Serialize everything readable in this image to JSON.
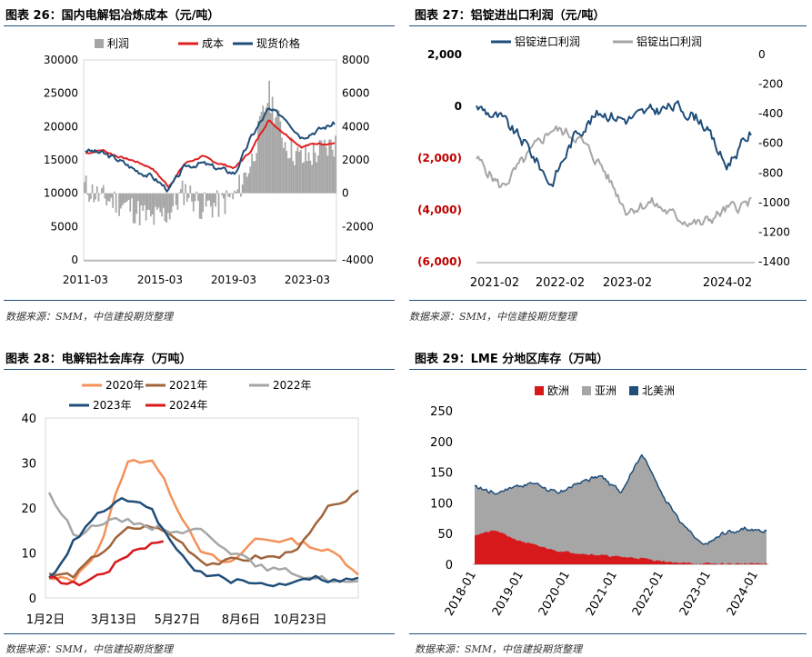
{
  "panels": [
    {
      "title": "图表 26：国内电解铝冶炼成本（元/吨）",
      "source": "数据来源：SMM，中信建投期货整理"
    },
    {
      "title": "图表 27：铝锭进出口利润（元/吨）",
      "source": "数据来源：SMM，中信建投期货整理"
    },
    {
      "title": "图表 28：电解铝社会库存（万吨）",
      "source": "数据来源：SMM，中信建投期货整理"
    },
    {
      "title": "图表 29：LME 分地区库存（万吨）",
      "source": "数据来源：SMM，中信建投期货整理"
    }
  ],
  "chart_data": [
    {
      "type": "line",
      "legend": [
        "利润",
        "成本",
        "现货价格"
      ],
      "colors": {
        "利润": "#a6a6a6",
        "成本": "#e02020",
        "现货价格": "#1f4e79"
      },
      "x_ticks": [
        "2011-03",
        "2015-03",
        "2019-03",
        "2023-03"
      ],
      "y_left": {
        "range": [
          0,
          30000
        ],
        "ticks": [
          "0",
          "5000",
          "10000",
          "15000",
          "20000",
          "25000",
          "30000"
        ]
      },
      "y_right": {
        "range": [
          -4000,
          8000
        ],
        "ticks": [
          "-4000",
          "-2000",
          "0",
          "2000",
          "4000",
          "6000",
          "8000"
        ]
      },
      "x": [
        "2011-03",
        "2012-03",
        "2013-03",
        "2014-03",
        "2015-03",
        "2016-03",
        "2017-03",
        "2018-03",
        "2019-03",
        "2020-03",
        "2021-03",
        "2021-10",
        "2022-03",
        "2023-03",
        "2024-03",
        "2024-06"
      ],
      "series": [
        {
          "name": "成本",
          "axis": "left",
          "values": [
            16000,
            16500,
            15500,
            14800,
            13800,
            11000,
            14500,
            15500,
            14500,
            13800,
            16500,
            21000,
            19000,
            17000,
            17500,
            17500
          ]
        },
        {
          "name": "现货价格",
          "axis": "left",
          "values": [
            16500,
            16000,
            15000,
            13500,
            12500,
            10500,
            14000,
            14500,
            13700,
            13000,
            18500,
            22500,
            21500,
            18500,
            19500,
            20500
          ]
        },
        {
          "name": "利润",
          "axis": "right",
          "values": [
            400,
            -300,
            -500,
            -1000,
            -1600,
            -1200,
            200,
            -800,
            -700,
            -200,
            2000,
            6000,
            3000,
            2000,
            2500,
            3000
          ]
        }
      ]
    },
    {
      "type": "line",
      "legend": [
        "铝锭进口利润",
        "铝锭出口利润"
      ],
      "colors": {
        "铝锭进口利润": "#1f4e79",
        "铝锭出口利润": "#a6a6a6"
      },
      "x_ticks": [
        "2021-02",
        "2022-02",
        "2023-02",
        "2024-02"
      ],
      "y_left": {
        "range": [
          -6000,
          2000
        ],
        "ticks": [
          "2,000",
          "0",
          "(2,000)",
          "(4,000)",
          "(6,000)"
        ]
      },
      "y_right": {
        "range": [
          -1400,
          0
        ],
        "ticks": [
          "0",
          "-200",
          "-400",
          "-600",
          "-800",
          "-1000",
          "-1200",
          "-1400"
        ]
      },
      "x": [
        "2021-02",
        "2021-06",
        "2021-10",
        "2022-02",
        "2022-06",
        "2022-10",
        "2023-02",
        "2023-06",
        "2023-10",
        "2024-02",
        "2024-05",
        "2024-06"
      ],
      "series": [
        {
          "name": "铝锭进口利润",
          "axis": "left",
          "values": [
            0,
            -500,
            -1500,
            -3000,
            -1000,
            -200,
            -500,
            -200,
            0,
            -500,
            -2300,
            -1000
          ]
        },
        {
          "name": "铝锭出口利润",
          "axis": "right",
          "values": [
            -700,
            -900,
            -700,
            -500,
            -550,
            -750,
            -1050,
            -1000,
            -1100,
            -1150,
            -1050,
            -1000
          ]
        }
      ]
    },
    {
      "type": "line",
      "legend": [
        "2020年",
        "2021年",
        "2022年",
        "2023年",
        "2024年"
      ],
      "colors": {
        "2020年": "#f4915a",
        "2021年": "#a0643a",
        "2022年": "#a6a6a6",
        "2023年": "#1f4e79",
        "2024年": "#d7191c"
      },
      "x_ticks": [
        "1月2日",
        "3月13日",
        "5月27日",
        "8月6日",
        "10月23日"
      ],
      "ylim": [
        0,
        40
      ],
      "y_ticks": [
        "0",
        "10",
        "20",
        "30",
        "40"
      ],
      "series": [
        {
          "name": "2020年",
          "values": [
            4,
            4,
            12,
            30,
            31,
            20,
            10,
            7,
            13,
            13,
            12,
            10,
            6
          ]
        },
        {
          "name": "2021年",
          "values": [
            5,
            5,
            10,
            15,
            16,
            13,
            8,
            8,
            9,
            9,
            13,
            21,
            23
          ]
        },
        {
          "name": "2022年",
          "values": [
            23,
            14,
            17,
            17,
            16,
            15,
            15,
            11,
            7,
            6,
            5,
            4,
            3
          ]
        },
        {
          "name": "2023年",
          "values": [
            4,
            13,
            19,
            22,
            19,
            10,
            5,
            4,
            3,
            3,
            5,
            4,
            4
          ]
        },
        {
          "name": "2024年",
          "values": [
            4,
            3,
            6,
            11,
            13
          ]
        }
      ]
    },
    {
      "type": "area",
      "stacked": true,
      "legend": [
        "欧洲",
        "亚洲",
        "北美洲"
      ],
      "colors": {
        "欧洲": "#d7191c",
        "亚洲": "#a6a6a6",
        "北美洲": "#1f4e79"
      },
      "x_ticks": [
        "2018-01",
        "2019-01",
        "2020-01",
        "2021-01",
        "2022-01",
        "2023-01",
        "2024-01"
      ],
      "ylim": [
        0,
        250
      ],
      "y_ticks": [
        "0",
        "50",
        "100",
        "150",
        "200",
        "250"
      ],
      "x": [
        "2018-01",
        "2018-07",
        "2019-01",
        "2019-07",
        "2020-01",
        "2020-07",
        "2021-01",
        "2021-04",
        "2021-07",
        "2022-01",
        "2022-07",
        "2023-01",
        "2023-07",
        "2024-01",
        "2024-06"
      ],
      "series": [
        {
          "name": "欧洲",
          "values": [
            48,
            55,
            40,
            30,
            22,
            18,
            15,
            12,
            10,
            5,
            2,
            1,
            1,
            1,
            1
          ]
        },
        {
          "name": "亚洲",
          "values": [
            78,
            60,
            88,
            100,
            92,
            115,
            128,
            105,
            170,
            110,
            60,
            27,
            50,
            55,
            52
          ]
        },
        {
          "name": "北美洲",
          "values": [
            1,
            1,
            1,
            1,
            1,
            1,
            1,
            1,
            1,
            1,
            1,
            1,
            1,
            1,
            1
          ]
        }
      ]
    }
  ]
}
